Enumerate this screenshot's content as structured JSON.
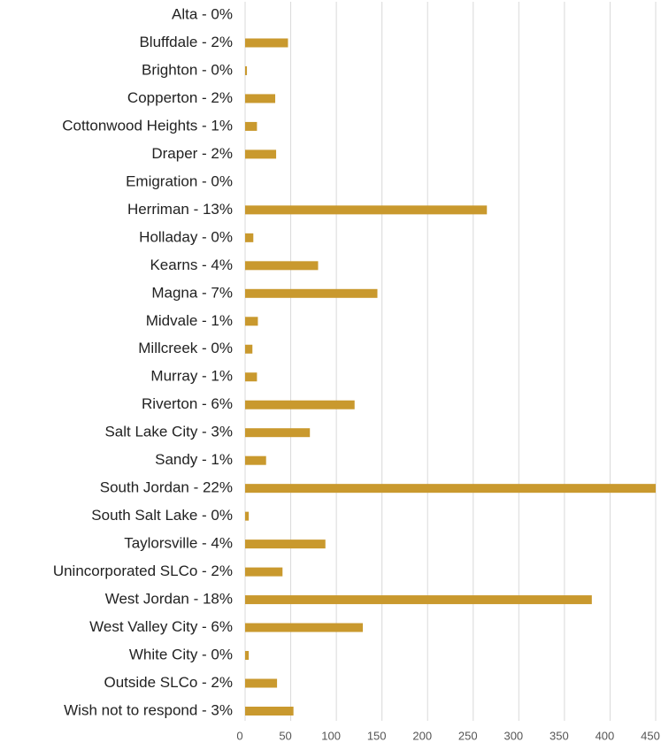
{
  "chart_data": {
    "type": "bar",
    "orientation": "horizontal",
    "categories": [
      "Alta - 0%",
      "Bluffdale - 2%",
      "Brighton - 0%",
      "Copperton - 2%",
      "Cottonwood Heights - 1%",
      "Draper - 2%",
      "Emigration - 0%",
      "Herriman - 13%",
      "Holladay - 0%",
      "Kearns - 4%",
      "Magna - 7%",
      "Midvale - 1%",
      "Millcreek - 0%",
      "Murray - 1%",
      "Riverton - 6%",
      "Salt Lake City - 3%",
      "Sandy - 1%",
      "South Jordan - 22%",
      "South Salt Lake - 0%",
      "Taylorsville - 4%",
      "Unincorporated SLCo - 2%",
      "West Jordan - 18%",
      "West Valley City - 6%",
      "White City - 0%",
      "Outside SLCo - 2%",
      "Wish not to respond - 3%"
    ],
    "values": [
      0,
      47,
      2,
      33,
      13,
      34,
      0,
      265,
      9,
      80,
      145,
      14,
      8,
      13,
      120,
      71,
      23,
      450,
      4,
      88,
      41,
      380,
      129,
      4,
      35,
      53
    ],
    "color": "#c9992e",
    "xlim": [
      0,
      450
    ],
    "xticks": [
      0,
      50,
      100,
      150,
      200,
      250,
      300,
      350,
      400,
      450
    ],
    "grid": true
  }
}
